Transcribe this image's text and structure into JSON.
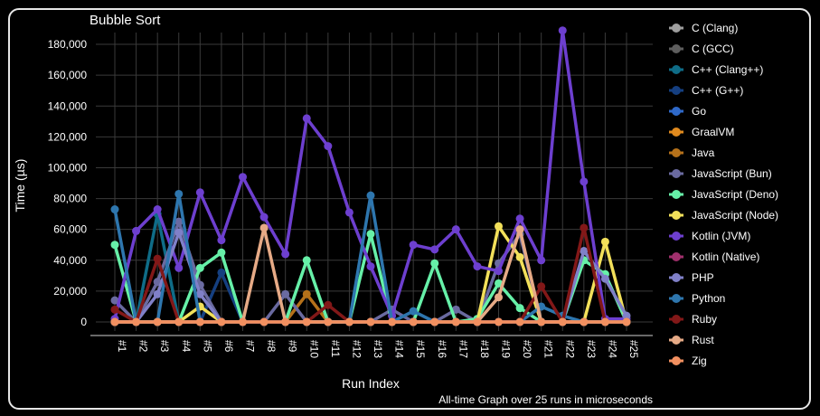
{
  "chart_data": {
    "type": "line",
    "title": "Bubble Sort",
    "xlabel": "Run Index",
    "ylabel": "Time (µs)",
    "caption": "All-time Graph over 25 runs in microseconds",
    "ylim": [
      0,
      190000
    ],
    "yticks": [
      0,
      20000,
      40000,
      60000,
      80000,
      100000,
      120000,
      140000,
      160000,
      180000
    ],
    "ytick_labels": [
      "0",
      "20,000",
      "40,000",
      "60,000",
      "80,000",
      "100,000",
      "120,000",
      "140,000",
      "160,000",
      "180,000"
    ],
    "grid": true,
    "legend_position": "right",
    "categories": [
      "#1",
      "#2",
      "#3",
      "#4",
      "#5",
      "#6",
      "#7",
      "#8",
      "#9",
      "#10",
      "#11",
      "#12",
      "#13",
      "#14",
      "#15",
      "#16",
      "#17",
      "#18",
      "#19",
      "#20",
      "#21",
      "#22",
      "#23",
      "#24",
      "#25"
    ],
    "series": [
      {
        "name": "C (Clang)",
        "color": "#9e9e9e",
        "values": [
          0,
          0,
          0,
          0,
          0,
          0,
          0,
          0,
          0,
          0,
          0,
          0,
          0,
          0,
          0,
          0,
          0,
          0,
          0,
          0,
          0,
          0,
          0,
          0,
          0
        ]
      },
      {
        "name": "C (GCC)",
        "color": "#5e5e5e",
        "values": [
          0,
          0,
          0,
          0,
          0,
          0,
          0,
          0,
          0,
          0,
          0,
          0,
          0,
          0,
          0,
          0,
          0,
          0,
          0,
          0,
          0,
          0,
          0,
          0,
          0
        ]
      },
      {
        "name": "C++ (Clang++)",
        "color": "#0f6c87",
        "values": [
          0,
          0,
          70000,
          0,
          0,
          0,
          0,
          0,
          0,
          0,
          0,
          0,
          0,
          0,
          0,
          0,
          0,
          0,
          0,
          0,
          0,
          0,
          0,
          0,
          0
        ]
      },
      {
        "name": "C++ (G++)",
        "color": "#153f80",
        "values": [
          0,
          0,
          0,
          0,
          0,
          32000,
          0,
          0,
          0,
          0,
          0,
          0,
          0,
          0,
          0,
          0,
          0,
          0,
          0,
          0,
          0,
          0,
          0,
          0,
          0
        ]
      },
      {
        "name": "Go",
        "color": "#2f69c9",
        "values": [
          0,
          0,
          0,
          0,
          0,
          0,
          0,
          0,
          0,
          0,
          0,
          0,
          0,
          0,
          0,
          0,
          0,
          0,
          0,
          0,
          0,
          0,
          0,
          0,
          0
        ]
      },
      {
        "name": "GraalVM",
        "color": "#e08a1e",
        "values": [
          0,
          0,
          0,
          0,
          0,
          0,
          0,
          0,
          0,
          0,
          0,
          0,
          0,
          0,
          0,
          0,
          0,
          0,
          0,
          0,
          0,
          0,
          0,
          0,
          0
        ]
      },
      {
        "name": "Java",
        "color": "#b5711a",
        "values": [
          0,
          0,
          0,
          0,
          0,
          0,
          0,
          0,
          0,
          18000,
          0,
          0,
          0,
          0,
          0,
          0,
          0,
          0,
          0,
          0,
          0,
          0,
          0,
          0,
          0
        ]
      },
      {
        "name": "JavaScript (Bun)",
        "color": "#6a6aa0",
        "values": [
          14000,
          0,
          26000,
          65000,
          24000,
          0,
          0,
          0,
          18000,
          0,
          0,
          0,
          0,
          8000,
          0,
          0,
          8000,
          0,
          38000,
          57000,
          0,
          0,
          0,
          0,
          0
        ]
      },
      {
        "name": "JavaScript (Deno)",
        "color": "#66f0a8",
        "values": [
          50000,
          0,
          0,
          0,
          35000,
          45000,
          0,
          0,
          0,
          40000,
          0,
          0,
          57000,
          0,
          0,
          38000,
          0,
          2000,
          25000,
          9000,
          0,
          0,
          40000,
          31000,
          0
        ]
      },
      {
        "name": "JavaScript (Node)",
        "color": "#f2e05a",
        "values": [
          0,
          0,
          0,
          0,
          10000,
          0,
          0,
          0,
          0,
          0,
          0,
          0,
          0,
          0,
          0,
          0,
          0,
          0,
          62000,
          42000,
          0,
          0,
          0,
          52000,
          0
        ]
      },
      {
        "name": "Kotlin (JVM)",
        "color": "#6d3fcf",
        "values": [
          2000,
          59000,
          73000,
          35000,
          84000,
          53000,
          94000,
          68000,
          44000,
          132000,
          114000,
          71000,
          36000,
          4000,
          50000,
          47000,
          60000,
          36000,
          33000,
          67000,
          40000,
          189000,
          91000,
          2000,
          2000
        ]
      },
      {
        "name": "Kotlin (Native)",
        "color": "#a0306c",
        "values": [
          0,
          0,
          0,
          0,
          0,
          0,
          0,
          0,
          0,
          0,
          0,
          0,
          0,
          0,
          0,
          0,
          0,
          0,
          0,
          0,
          0,
          0,
          0,
          0,
          0
        ]
      },
      {
        "name": "PHP",
        "color": "#8080c8",
        "values": [
          0,
          0,
          18000,
          58000,
          18000,
          0,
          0,
          0,
          0,
          0,
          0,
          0,
          0,
          0,
          0,
          0,
          0,
          0,
          0,
          0,
          0,
          0,
          46000,
          28000,
          4000
        ]
      },
      {
        "name": "Python",
        "color": "#2e76ae",
        "values": [
          73000,
          0,
          0,
          83000,
          0,
          0,
          0,
          0,
          0,
          0,
          0,
          0,
          82000,
          0,
          7000,
          0,
          0,
          0,
          0,
          0,
          10000,
          4000,
          0,
          0,
          0
        ]
      },
      {
        "name": "Ruby",
        "color": "#821818",
        "values": [
          8000,
          0,
          41000,
          0,
          0,
          0,
          0,
          0,
          0,
          0,
          11000,
          0,
          0,
          0,
          0,
          0,
          0,
          0,
          0,
          0,
          23000,
          0,
          61000,
          0,
          0
        ]
      },
      {
        "name": "Rust",
        "color": "#e6aa86",
        "values": [
          0,
          0,
          0,
          0,
          0,
          0,
          0,
          61000,
          0,
          0,
          0,
          0,
          0,
          0,
          0,
          0,
          0,
          0,
          16000,
          60000,
          0,
          0,
          0,
          0,
          0
        ]
      },
      {
        "name": "Zig",
        "color": "#f29060",
        "values": [
          0,
          0,
          0,
          0,
          0,
          0,
          0,
          0,
          0,
          0,
          0,
          0,
          0,
          0,
          0,
          0,
          0,
          0,
          0,
          0,
          0,
          0,
          0,
          0,
          0
        ]
      }
    ]
  }
}
